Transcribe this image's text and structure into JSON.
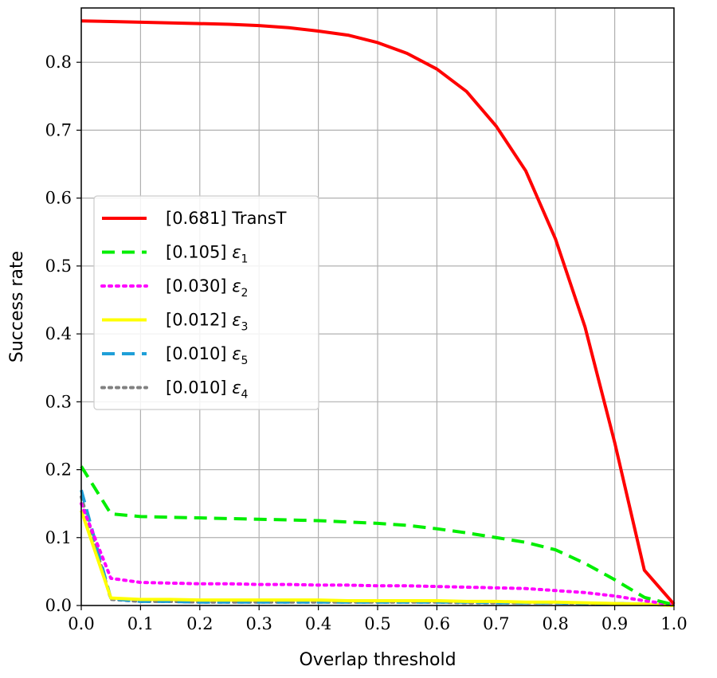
{
  "chart_data": {
    "type": "line",
    "title": "",
    "xlabel": "Overlap threshold",
    "ylabel": "Success rate",
    "xlim": [
      0.0,
      1.0
    ],
    "ylim": [
      0.0,
      0.88
    ],
    "x_ticks": [
      "0.0",
      "0.1",
      "0.2",
      "0.3",
      "0.4",
      "0.5",
      "0.6",
      "0.7",
      "0.8",
      "0.9",
      "1.0"
    ],
    "y_ticks": [
      "0.0",
      "0.1",
      "0.2",
      "0.3",
      "0.4",
      "0.5",
      "0.6",
      "0.7",
      "0.8"
    ],
    "grid": true,
    "legend_position": "center-left",
    "x": [
      0.0,
      0.05,
      0.1,
      0.15,
      0.2,
      0.25,
      0.3,
      0.35,
      0.4,
      0.45,
      0.5,
      0.55,
      0.6,
      0.65,
      0.7,
      0.75,
      0.8,
      0.85,
      0.9,
      0.95,
      1.0
    ],
    "series": [
      {
        "name": "TransT",
        "legend_prefix": "[0.681] ",
        "legend_main": "TransT",
        "legend_sub": "",
        "color": "#ff0000",
        "dash": "solid",
        "values": [
          0.861,
          0.86,
          0.859,
          0.858,
          0.857,
          0.856,
          0.854,
          0.851,
          0.846,
          0.84,
          0.829,
          0.813,
          0.79,
          0.757,
          0.706,
          0.64,
          0.54,
          0.41,
          0.24,
          0.052,
          0.002
        ]
      },
      {
        "name": "[0.105] ε1",
        "legend_prefix": "[0.105] ",
        "legend_main": "ε",
        "legend_sub": "1",
        "color": "#00ee00",
        "dash": "dashed",
        "values": [
          0.205,
          0.135,
          0.131,
          0.13,
          0.129,
          0.128,
          0.127,
          0.126,
          0.125,
          0.123,
          0.121,
          0.118,
          0.113,
          0.107,
          0.1,
          0.093,
          0.082,
          0.062,
          0.038,
          0.012,
          0.001
        ]
      },
      {
        "name": "[0.030] ε2",
        "legend_prefix": "[0.030] ",
        "legend_main": "ε",
        "legend_sub": "2",
        "color": "#ff00ff",
        "dash": "dotted",
        "values": [
          0.15,
          0.04,
          0.034,
          0.033,
          0.032,
          0.032,
          0.031,
          0.031,
          0.03,
          0.03,
          0.029,
          0.029,
          0.028,
          0.027,
          0.026,
          0.025,
          0.022,
          0.019,
          0.014,
          0.007,
          0.001
        ]
      },
      {
        "name": "[0.012] ε3",
        "legend_prefix": "[0.012] ",
        "legend_main": "ε",
        "legend_sub": "3",
        "color": "#ffff00",
        "dash": "solid",
        "values": [
          0.14,
          0.011,
          0.009,
          0.009,
          0.008,
          0.008,
          0.008,
          0.008,
          0.008,
          0.007,
          0.007,
          0.007,
          0.007,
          0.006,
          0.006,
          0.005,
          0.005,
          0.004,
          0.003,
          0.002,
          0.0
        ]
      },
      {
        "name": "[0.010] ε5",
        "legend_prefix": "[0.010] ",
        "legend_main": "ε",
        "legend_sub": "5",
        "color": "#1f9fd8",
        "dash": "dashed",
        "values": [
          0.17,
          0.01,
          0.006,
          0.006,
          0.005,
          0.005,
          0.005,
          0.005,
          0.005,
          0.005,
          0.005,
          0.005,
          0.005,
          0.005,
          0.004,
          0.004,
          0.004,
          0.003,
          0.003,
          0.002,
          0.0
        ]
      },
      {
        "name": "[0.010] ε4",
        "legend_prefix": "[0.010] ",
        "legend_main": "ε",
        "legend_sub": "4",
        "color": "#808080",
        "dash": "dotted",
        "values": [
          0.16,
          0.009,
          0.006,
          0.006,
          0.005,
          0.005,
          0.005,
          0.005,
          0.005,
          0.005,
          0.005,
          0.005,
          0.005,
          0.004,
          0.004,
          0.004,
          0.004,
          0.003,
          0.003,
          0.002,
          0.0
        ]
      }
    ]
  }
}
